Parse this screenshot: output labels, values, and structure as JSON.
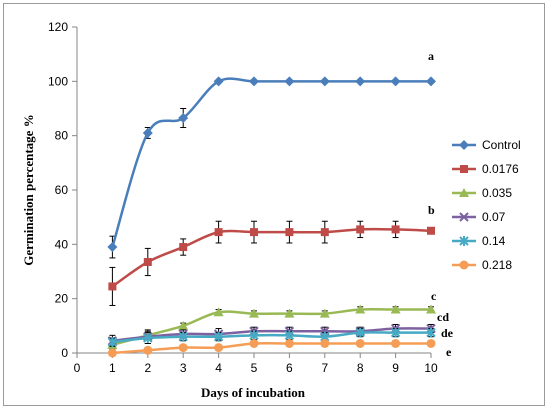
{
  "chart_data": {
    "type": "line",
    "title": "",
    "xlabel": "Days of incubation",
    "ylabel": "Germination percentage %",
    "xlim": [
      0,
      10
    ],
    "ylim": [
      0,
      120
    ],
    "x_ticks": [
      0,
      1,
      2,
      3,
      4,
      5,
      6,
      7,
      8,
      9,
      10
    ],
    "y_ticks": [
      0,
      20,
      40,
      60,
      80,
      100,
      120
    ],
    "grid": false,
    "legend_position": "right",
    "x": [
      1,
      2,
      3,
      4,
      5,
      6,
      7,
      8,
      9,
      10
    ],
    "series": [
      {
        "name": "Control",
        "color": "#4a7ebb",
        "marker": "diamond",
        "values": [
          39,
          81,
          86.5,
          100,
          100,
          100,
          100,
          100,
          100,
          100
        ],
        "errors": [
          4,
          2,
          3.5,
          0,
          0,
          0,
          0,
          0,
          0,
          0
        ]
      },
      {
        "name": "0.0176",
        "color": "#be4b48",
        "marker": "square",
        "values": [
          24.5,
          33.5,
          39,
          44.5,
          44.5,
          44.5,
          44.5,
          45.5,
          45.5,
          45
        ],
        "errors": [
          7,
          5,
          3,
          4,
          4,
          4,
          4,
          3,
          3,
          1
        ]
      },
      {
        "name": "0.035",
        "color": "#98b954",
        "marker": "triangle",
        "values": [
          3,
          6.5,
          10,
          15,
          14.5,
          14.5,
          14.5,
          16,
          16,
          16
        ],
        "errors": [
          1.5,
          1.5,
          1,
          1,
          1,
          1,
          1,
          1,
          1,
          1
        ]
      },
      {
        "name": "0.07",
        "color": "#7d60a0",
        "marker": "x",
        "values": [
          4.5,
          6,
          7,
          7,
          8,
          8,
          8,
          8,
          9,
          9
        ],
        "errors": [
          2,
          2.5,
          1.5,
          2,
          1.5,
          1.5,
          1.5,
          1.5,
          1.5,
          1.5
        ]
      },
      {
        "name": "0.14",
        "color": "#46aac4",
        "marker": "star",
        "values": [
          4,
          5.5,
          6,
          6,
          6.5,
          6.5,
          6,
          7.5,
          7.5,
          7.5
        ],
        "errors": [
          1.5,
          2,
          1.5,
          1.5,
          1.5,
          1.5,
          1.5,
          1.5,
          1.5,
          1.5
        ]
      },
      {
        "name": "0.218",
        "color": "#f59d56",
        "marker": "circle",
        "values": [
          0,
          1,
          2,
          2,
          3.5,
          3.5,
          3.5,
          3.5,
          3.5,
          3.5
        ],
        "errors": [
          0,
          0.5,
          0.5,
          0.5,
          0.5,
          0.5,
          0.5,
          0.5,
          0.5,
          0.5
        ]
      }
    ],
    "significance_labels": [
      {
        "text": "a",
        "near_series": "Control"
      },
      {
        "text": "b",
        "near_series": "0.0176"
      },
      {
        "text": "c",
        "near_series": "0.035"
      },
      {
        "text": "cd",
        "near_series": "0.07"
      },
      {
        "text": "de",
        "near_series": "0.14"
      },
      {
        "text": "e",
        "near_series": "0.218"
      }
    ]
  }
}
